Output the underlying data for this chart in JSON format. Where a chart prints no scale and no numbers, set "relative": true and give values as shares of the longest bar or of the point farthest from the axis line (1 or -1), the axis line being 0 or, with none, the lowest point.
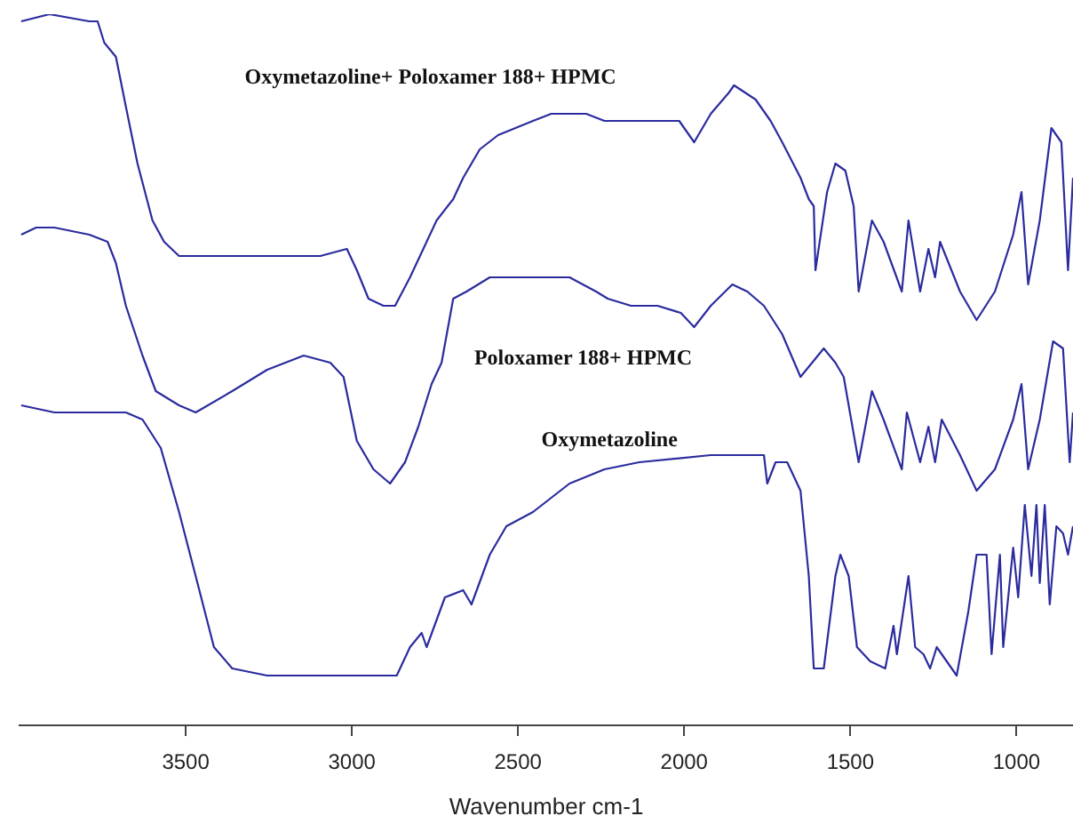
{
  "chart_data": {
    "type": "line",
    "xlabel": "Wavenumber cm-1",
    "relative": true,
    "xlim": [
      4000,
      830
    ],
    "xticks": [
      3500,
      3000,
      2500,
      2000,
      1500,
      1000
    ],
    "grid": false,
    "legend": false,
    "marker": "none",
    "line_style": "solid",
    "series": [
      {
        "name": "Oxymetazoline+ Poloxamer 188+ HPMC",
        "color": "#2b2b9e",
        "x": [
          3995,
          3910,
          3790,
          3765,
          3745,
          3710,
          3680,
          3645,
          3600,
          3565,
          3520,
          3415,
          3255,
          3095,
          3015,
          2985,
          2950,
          2905,
          2870,
          2825,
          2745,
          2695,
          2665,
          2615,
          2560,
          2455,
          2400,
          2295,
          2240,
          2160,
          2015,
          1970,
          1920,
          1865,
          1850,
          1785,
          1740,
          1705,
          1650,
          1625,
          1610,
          1605,
          1570,
          1545,
          1515,
          1490,
          1475,
          1435,
          1400,
          1345,
          1325,
          1290,
          1265,
          1245,
          1230,
          1170,
          1120,
          1065,
          1010,
          985,
          965,
          930,
          895,
          865,
          845,
          830
        ],
        "values": [
          0.99,
          1.0,
          0.99,
          0.99,
          0.96,
          0.94,
          0.87,
          0.79,
          0.71,
          0.68,
          0.66,
          0.66,
          0.66,
          0.66,
          0.67,
          0.64,
          0.6,
          0.59,
          0.59,
          0.63,
          0.71,
          0.74,
          0.77,
          0.81,
          0.83,
          0.85,
          0.86,
          0.86,
          0.85,
          0.85,
          0.85,
          0.82,
          0.86,
          0.89,
          0.9,
          0.88,
          0.85,
          0.82,
          0.77,
          0.74,
          0.73,
          0.64,
          0.75,
          0.79,
          0.78,
          0.73,
          0.61,
          0.71,
          0.68,
          0.61,
          0.71,
          0.61,
          0.67,
          0.63,
          0.68,
          0.61,
          0.57,
          0.61,
          0.69,
          0.75,
          0.62,
          0.71,
          0.84,
          0.82,
          0.64,
          0.77
        ]
      },
      {
        "name": "Poloxamer 188+ HPMC",
        "color": "#2b2b9e",
        "x": [
          3995,
          3950,
          3895,
          3790,
          3735,
          3710,
          3680,
          3630,
          3590,
          3520,
          3470,
          3360,
          3255,
          3145,
          3065,
          3025,
          2985,
          2935,
          2885,
          2840,
          2800,
          2760,
          2730,
          2695,
          2655,
          2585,
          2505,
          2400,
          2345,
          2265,
          2230,
          2160,
          2080,
          2010,
          1970,
          1920,
          1855,
          1810,
          1760,
          1705,
          1650,
          1580,
          1545,
          1520,
          1475,
          1435,
          1400,
          1345,
          1330,
          1290,
          1265,
          1245,
          1225,
          1170,
          1120,
          1065,
          1010,
          985,
          965,
          930,
          890,
          860,
          840,
          830
        ],
        "values": [
          0.69,
          0.7,
          0.7,
          0.69,
          0.68,
          0.65,
          0.59,
          0.52,
          0.47,
          0.45,
          0.44,
          0.47,
          0.5,
          0.52,
          0.51,
          0.49,
          0.4,
          0.36,
          0.34,
          0.37,
          0.42,
          0.48,
          0.51,
          0.6,
          0.61,
          0.63,
          0.63,
          0.63,
          0.63,
          0.61,
          0.6,
          0.59,
          0.59,
          0.58,
          0.56,
          0.59,
          0.62,
          0.61,
          0.59,
          0.55,
          0.49,
          0.53,
          0.51,
          0.49,
          0.37,
          0.47,
          0.43,
          0.36,
          0.44,
          0.37,
          0.42,
          0.37,
          0.43,
          0.38,
          0.33,
          0.36,
          0.43,
          0.48,
          0.36,
          0.43,
          0.54,
          0.53,
          0.37,
          0.44
        ]
      },
      {
        "name": "Oxymetazoline",
        "color": "#2b2b9e",
        "x": [
          3995,
          3895,
          3680,
          3630,
          3575,
          3520,
          3470,
          3415,
          3360,
          3255,
          2985,
          2865,
          2825,
          2790,
          2775,
          2720,
          2665,
          2640,
          2585,
          2535,
          2455,
          2400,
          2345,
          2240,
          2135,
          1920,
          1760,
          1750,
          1725,
          1690,
          1650,
          1625,
          1610,
          1580,
          1545,
          1530,
          1505,
          1480,
          1440,
          1395,
          1370,
          1360,
          1325,
          1305,
          1280,
          1260,
          1240,
          1180,
          1145,
          1120,
          1090,
          1075,
          1050,
          1040,
          1010,
          995,
          975,
          955,
          940,
          930,
          915,
          900,
          880,
          860,
          845,
          830
        ],
        "values": [
          0.45,
          0.44,
          0.44,
          0.43,
          0.39,
          0.3,
          0.21,
          0.11,
          0.08,
          0.07,
          0.07,
          0.07,
          0.11,
          0.13,
          0.11,
          0.18,
          0.19,
          0.17,
          0.24,
          0.28,
          0.3,
          0.32,
          0.34,
          0.36,
          0.37,
          0.38,
          0.38,
          0.34,
          0.37,
          0.37,
          0.33,
          0.21,
          0.08,
          0.08,
          0.21,
          0.24,
          0.21,
          0.11,
          0.09,
          0.08,
          0.14,
          0.1,
          0.21,
          0.11,
          0.1,
          0.08,
          0.11,
          0.07,
          0.16,
          0.24,
          0.24,
          0.1,
          0.24,
          0.11,
          0.25,
          0.18,
          0.31,
          0.21,
          0.31,
          0.2,
          0.31,
          0.17,
          0.28,
          0.27,
          0.24,
          0.28
        ]
      }
    ]
  }
}
